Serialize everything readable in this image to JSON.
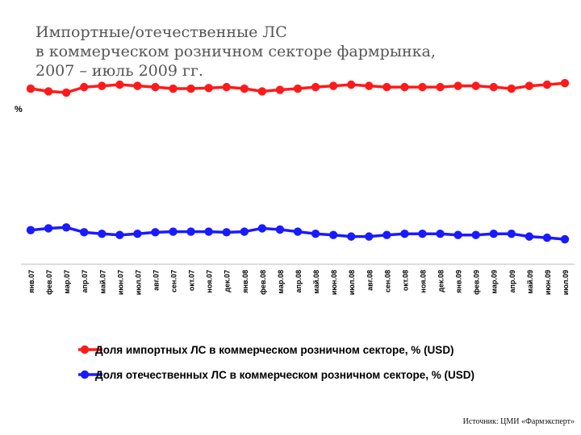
{
  "slide": {
    "title_lines": [
      "Импортные/отечественные ЛС",
      "в коммерческом розничном секторе фармрынка,",
      "2007 – июль 2009 гг."
    ],
    "source": "Источник: ЦМИ «Фармэксперт»"
  },
  "chart_data": {
    "type": "line",
    "ylabel": "%",
    "ylim": [
      0,
      100
    ],
    "grid": false,
    "legend_position": "bottom",
    "categories": [
      "янв.07",
      "фев.07",
      "мар.07",
      "апр.07",
      "май.07",
      "июн.07",
      "июл.07",
      "авг.07",
      "сен.07",
      "окт.07",
      "ноя.07",
      "дек.07",
      "янв.08",
      "фев.08",
      "мар.08",
      "апр.08",
      "май.08",
      "июн.08",
      "июл.08",
      "авг.08",
      "сен.08",
      "окт.08",
      "ноя.08",
      "дек.08",
      "янв.09",
      "фев.09",
      "мар.09",
      "апр.09",
      "май.09",
      "июн.09",
      "июл.09"
    ],
    "series": [
      {
        "name": "Доля импортных ЛС в коммерческом розничном секторе, % (USD)",
        "color": "#ff1a1a",
        "values": [
          74.0,
          73.1,
          72.7,
          74.5,
          74.9,
          75.3,
          74.9,
          74.5,
          74.0,
          74.0,
          74.2,
          74.5,
          74.0,
          73.1,
          73.6,
          74.0,
          74.5,
          74.9,
          75.3,
          74.9,
          74.5,
          74.5,
          74.5,
          74.5,
          74.9,
          74.9,
          74.5,
          74.0,
          74.9,
          75.3,
          75.8
        ]
      },
      {
        "name": "Доля отечественных ЛС в коммерческом розничном секторе, % (USD)",
        "color": "#1a1aff",
        "values": [
          27.4,
          28.0,
          28.3,
          26.7,
          26.2,
          25.8,
          26.2,
          26.7,
          26.9,
          26.9,
          26.9,
          26.7,
          26.9,
          28.0,
          27.6,
          26.9,
          26.2,
          25.8,
          25.3,
          25.3,
          25.8,
          26.2,
          26.2,
          26.2,
          25.8,
          25.8,
          26.2,
          26.2,
          25.3,
          24.9,
          24.4
        ]
      }
    ]
  }
}
